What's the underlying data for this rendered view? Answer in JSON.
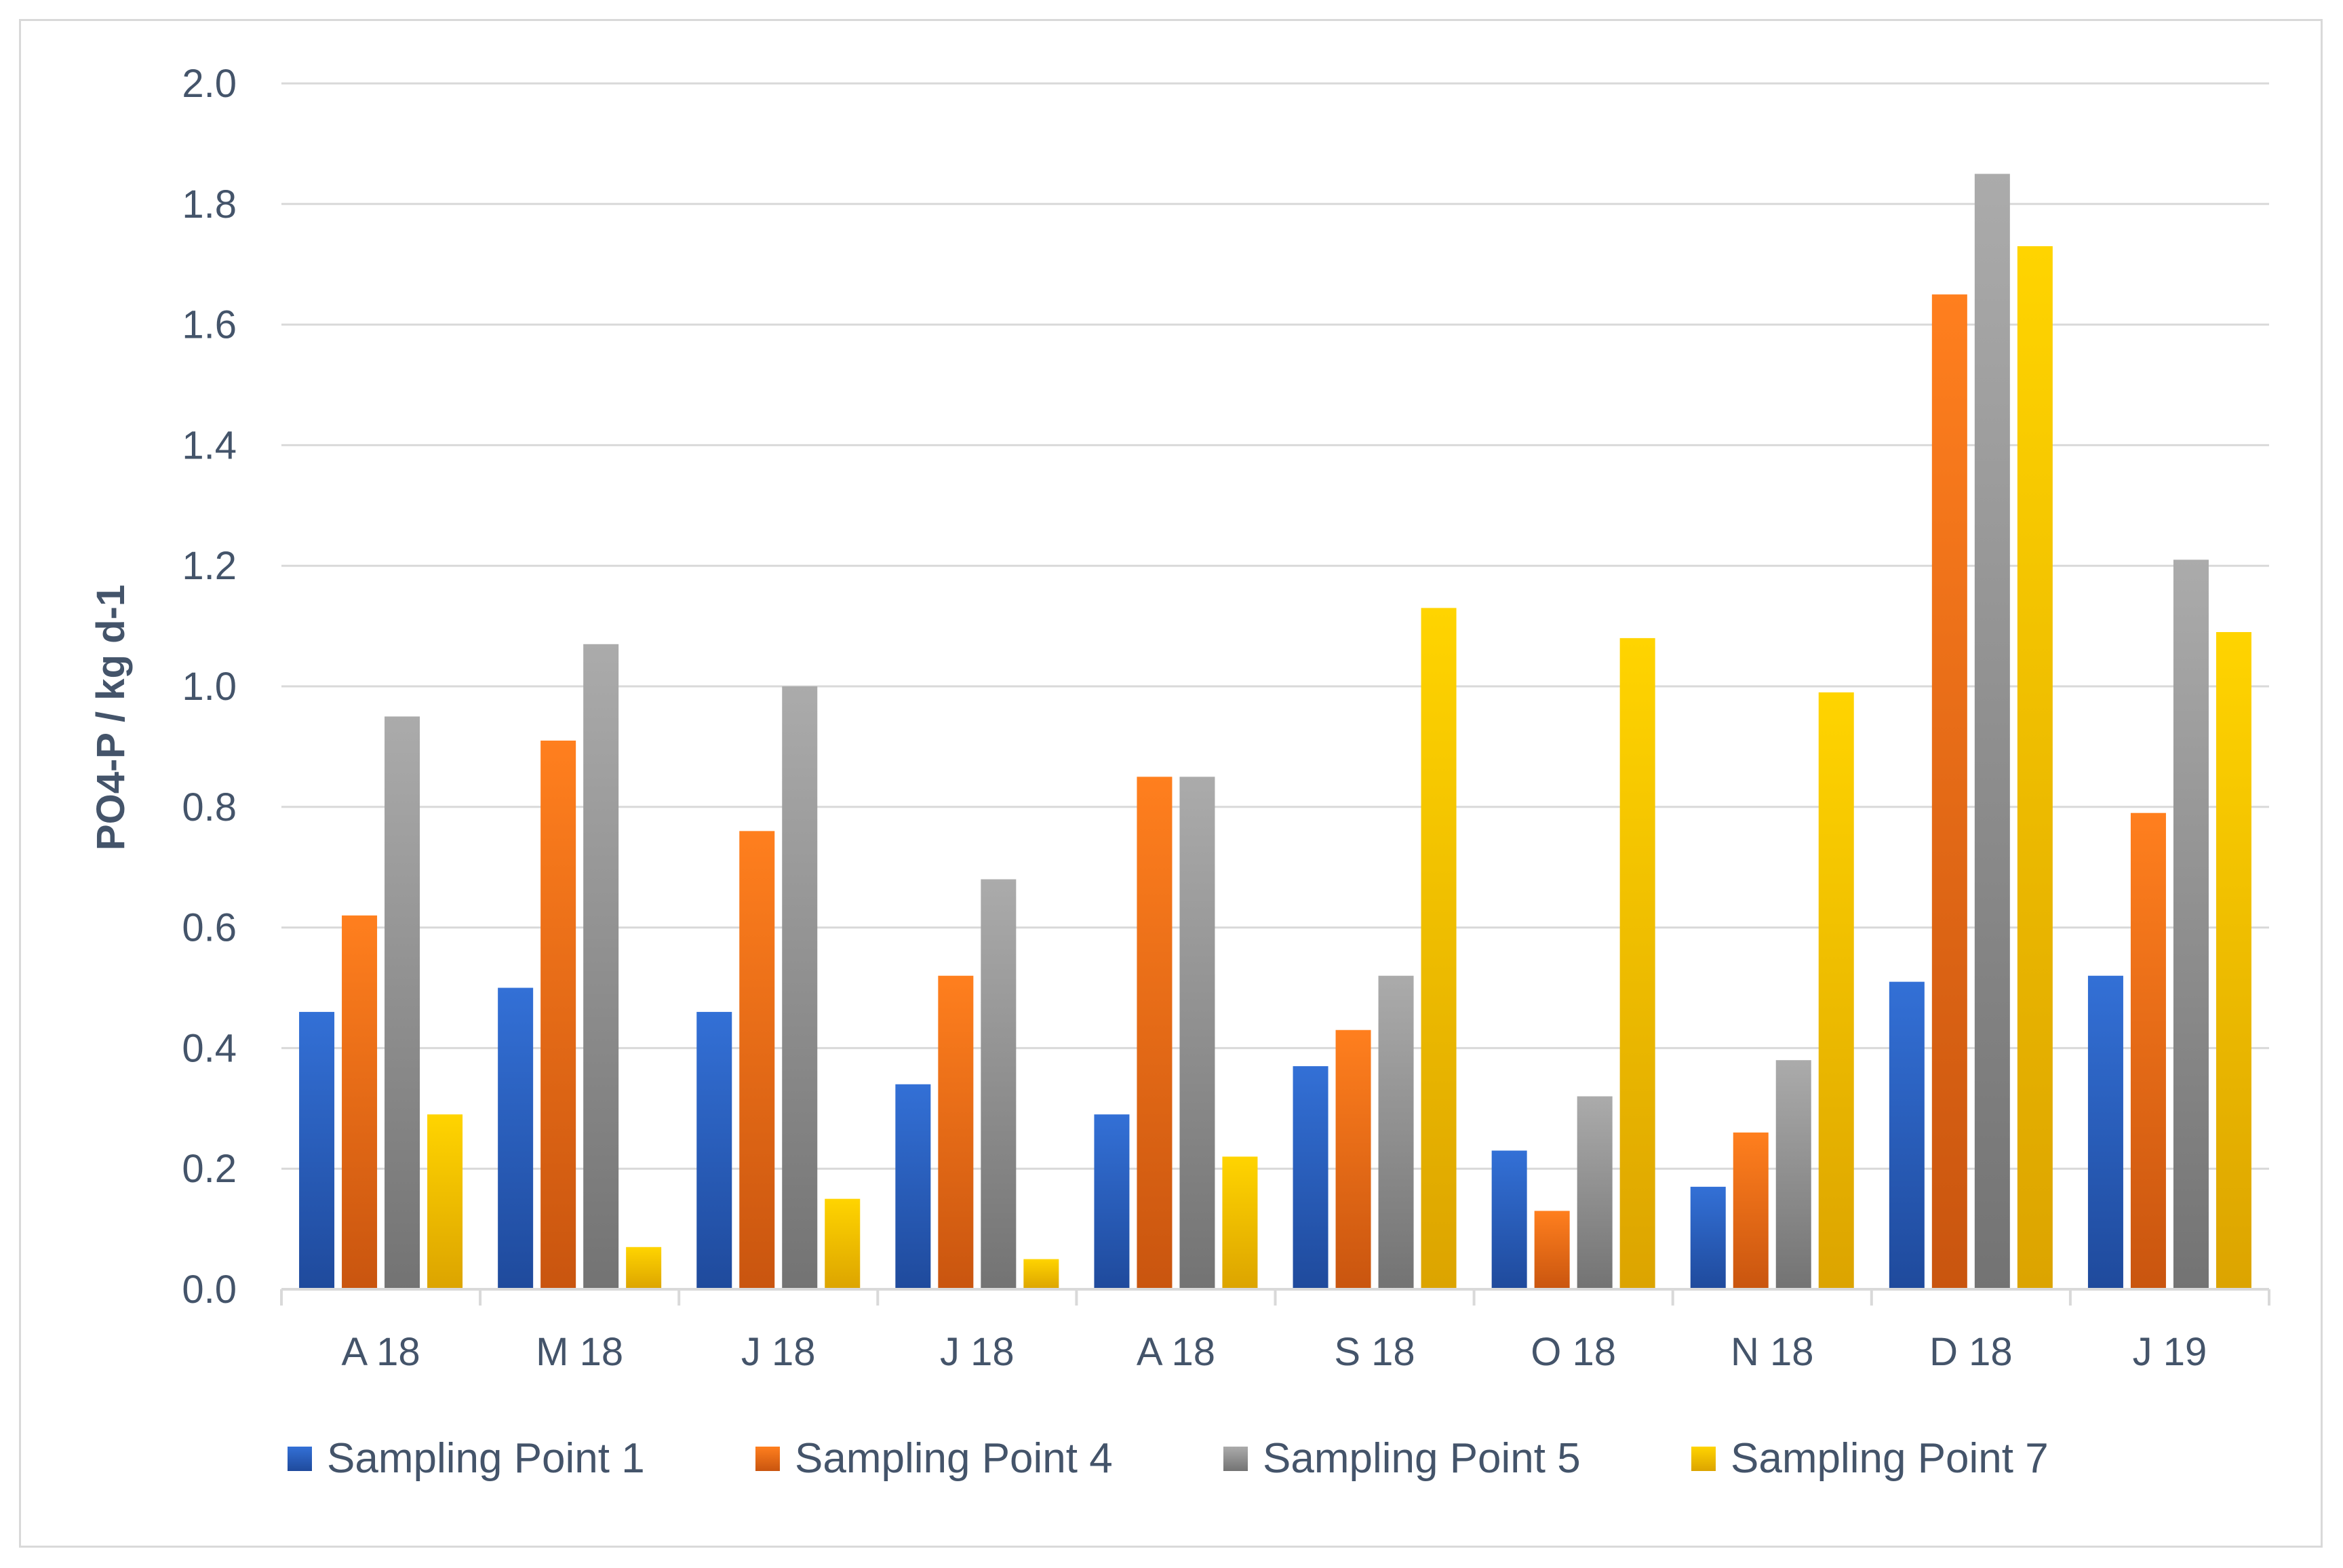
{
  "chart_data": {
    "type": "bar",
    "title": "",
    "xlabel": "",
    "ylabel": "PO4-P / kg d-1",
    "ylim": [
      0,
      2.0
    ],
    "ytick_step": 0.2,
    "ytick_labels": [
      "0.0",
      "0.2",
      "0.4",
      "0.6",
      "0.8",
      "1.0",
      "1.2",
      "1.4",
      "1.6",
      "1.8",
      "2.0"
    ],
    "grid": true,
    "legend_position": "bottom",
    "categories": [
      "A 18",
      "M 18",
      "J 18",
      "J 18",
      "A 18",
      "S 18",
      "O 18",
      "N 18",
      "D 18",
      "J 19"
    ],
    "series": [
      {
        "name": "Sampling Point 1",
        "color_top": "#3370d6",
        "color_bottom": "#1f4a9c",
        "values": [
          0.46,
          0.5,
          0.46,
          0.34,
          0.29,
          0.37,
          0.23,
          0.17,
          0.51,
          0.52
        ]
      },
      {
        "name": "Sampling Point 4",
        "color_top": "#ff7f1e",
        "color_bottom": "#c9550f",
        "values": [
          0.62,
          0.91,
          0.76,
          0.52,
          0.85,
          0.43,
          0.13,
          0.26,
          1.65,
          0.79
        ]
      },
      {
        "name": "Sampling Point 5",
        "color_top": "#ababab",
        "color_bottom": "#737373",
        "values": [
          0.95,
          1.07,
          1.0,
          0.68,
          0.85,
          0.52,
          0.32,
          0.38,
          1.85,
          1.21
        ]
      },
      {
        "name": "Sampling Point 7",
        "color_top": "#ffd400",
        "color_bottom": "#dca400",
        "values": [
          0.29,
          0.07,
          0.15,
          0.05,
          0.22,
          1.13,
          1.08,
          0.99,
          1.73,
          1.09
        ]
      }
    ]
  }
}
